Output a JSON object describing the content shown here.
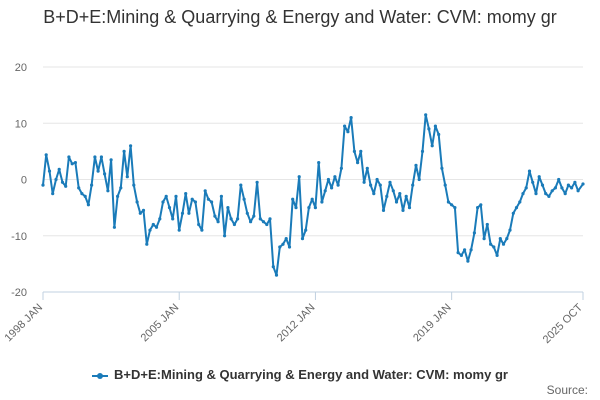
{
  "chart_data": {
    "type": "line",
    "title": "B+D+E:Mining & Quarrying & Energy and Water: CVM: momy gr",
    "xlabel": "",
    "ylabel": "",
    "ylim": [
      -20,
      20
    ],
    "yticks": [
      20,
      10,
      0,
      -10,
      -20
    ],
    "xticks": [
      {
        "label": "1998 JAN",
        "x": "1998-01"
      },
      {
        "label": "2005 JAN",
        "x": "2005-01"
      },
      {
        "label": "2012 JAN",
        "x": "2012-01"
      },
      {
        "label": "2019 JAN",
        "x": "2019-01"
      },
      {
        "label": "2025 OCT",
        "x": "2025-10"
      }
    ],
    "grid": "horizontal",
    "legend_position": "bottom",
    "color": "#1a7bb9",
    "series": [
      {
        "name": "B+D+E:Mining & Quarrying & Energy and Water: CVM: momy gr",
        "points": [
          [
            "1998-01",
            -1.0
          ],
          [
            "1998-03",
            4.4
          ],
          [
            "1998-05",
            1.5
          ],
          [
            "1998-07",
            -2.5
          ],
          [
            "1998-09",
            0.0
          ],
          [
            "1998-11",
            1.8
          ],
          [
            "1999-01",
            -0.5
          ],
          [
            "1999-03",
            -1.2
          ],
          [
            "1999-05",
            4.0
          ],
          [
            "1999-07",
            2.8
          ],
          [
            "1999-09",
            3.0
          ],
          [
            "1999-11",
            -1.5
          ],
          [
            "2000-01",
            -2.5
          ],
          [
            "2000-03",
            -3.0
          ],
          [
            "2000-05",
            -4.5
          ],
          [
            "2000-07",
            -1.0
          ],
          [
            "2000-09",
            4.0
          ],
          [
            "2000-11",
            1.5
          ],
          [
            "2001-01",
            4.0
          ],
          [
            "2001-03",
            1.0
          ],
          [
            "2001-05",
            -2.0
          ],
          [
            "2001-07",
            3.5
          ],
          [
            "2001-09",
            -8.5
          ],
          [
            "2001-11",
            -3.0
          ],
          [
            "2002-01",
            -1.5
          ],
          [
            "2002-03",
            5.0
          ],
          [
            "2002-05",
            0.5
          ],
          [
            "2002-07",
            6.0
          ],
          [
            "2002-09",
            -1.0
          ],
          [
            "2002-11",
            -4.0
          ],
          [
            "2003-01",
            -6.0
          ],
          [
            "2003-03",
            -5.5
          ],
          [
            "2003-05",
            -11.5
          ],
          [
            "2003-07",
            -9.0
          ],
          [
            "2003-09",
            -8.0
          ],
          [
            "2003-11",
            -8.5
          ],
          [
            "2004-01",
            -7.0
          ],
          [
            "2004-03",
            -4.0
          ],
          [
            "2004-05",
            -3.0
          ],
          [
            "2004-07",
            -5.0
          ],
          [
            "2004-09",
            -7.0
          ],
          [
            "2004-11",
            -3.0
          ],
          [
            "2005-01",
            -9.0
          ],
          [
            "2005-03",
            -6.0
          ],
          [
            "2005-05",
            -2.5
          ],
          [
            "2005-07",
            -6.0
          ],
          [
            "2005-09",
            -3.5
          ],
          [
            "2005-11",
            -4.0
          ],
          [
            "2006-01",
            -8.0
          ],
          [
            "2006-03",
            -9.0
          ],
          [
            "2006-05",
            -2.0
          ],
          [
            "2006-07",
            -3.5
          ],
          [
            "2006-09",
            -4.0
          ],
          [
            "2006-11",
            -6.5
          ],
          [
            "2007-01",
            -7.5
          ],
          [
            "2007-03",
            -3.0
          ],
          [
            "2007-05",
            -10.0
          ],
          [
            "2007-07",
            -5.0
          ],
          [
            "2007-09",
            -7.0
          ],
          [
            "2007-11",
            -8.0
          ],
          [
            "2008-01",
            -7.0
          ],
          [
            "2008-03",
            -1.0
          ],
          [
            "2008-05",
            -3.5
          ],
          [
            "2008-07",
            -6.0
          ],
          [
            "2008-09",
            -7.5
          ],
          [
            "2008-11",
            -6.5
          ],
          [
            "2009-01",
            -0.5
          ],
          [
            "2009-03",
            -7.0
          ],
          [
            "2009-05",
            -7.5
          ],
          [
            "2009-07",
            -8.0
          ],
          [
            "2009-09",
            -7.0
          ],
          [
            "2009-11",
            -15.5
          ],
          [
            "2010-01",
            -17.0
          ],
          [
            "2010-03",
            -12.0
          ],
          [
            "2010-05",
            -11.5
          ],
          [
            "2010-07",
            -10.5
          ],
          [
            "2010-09",
            -12.0
          ],
          [
            "2010-11",
            -3.5
          ],
          [
            "2011-01",
            -5.0
          ],
          [
            "2011-03",
            0.5
          ],
          [
            "2011-05",
            -10.5
          ],
          [
            "2011-07",
            -9.0
          ],
          [
            "2011-09",
            -5.0
          ],
          [
            "2011-11",
            -3.5
          ],
          [
            "2012-01",
            -5.0
          ],
          [
            "2012-03",
            3.0
          ],
          [
            "2012-05",
            -4.0
          ],
          [
            "2012-07",
            -2.0
          ],
          [
            "2012-09",
            0.0
          ],
          [
            "2012-11",
            -1.5
          ],
          [
            "2013-01",
            0.5
          ],
          [
            "2013-03",
            -1.0
          ],
          [
            "2013-05",
            2.0
          ],
          [
            "2013-07",
            9.5
          ],
          [
            "2013-09",
            8.5
          ],
          [
            "2013-11",
            11.0
          ],
          [
            "2014-01",
            5.0
          ],
          [
            "2014-03",
            3.0
          ],
          [
            "2014-05",
            5.0
          ],
          [
            "2014-07",
            -0.5
          ],
          [
            "2014-09",
            2.0
          ],
          [
            "2014-11",
            -1.0
          ],
          [
            "2015-01",
            -2.5
          ],
          [
            "2015-03",
            0.0
          ],
          [
            "2015-05",
            -1.0
          ],
          [
            "2015-07",
            -5.5
          ],
          [
            "2015-09",
            -3.0
          ],
          [
            "2015-11",
            -0.5
          ],
          [
            "2016-01",
            -2.0
          ],
          [
            "2016-03",
            -4.0
          ],
          [
            "2016-05",
            -2.5
          ],
          [
            "2016-07",
            -5.5
          ],
          [
            "2016-09",
            -3.0
          ],
          [
            "2016-11",
            -5.0
          ],
          [
            "2017-01",
            -1.0
          ],
          [
            "2017-03",
            2.5
          ],
          [
            "2017-05",
            0.0
          ],
          [
            "2017-07",
            5.0
          ],
          [
            "2017-09",
            11.5
          ],
          [
            "2017-11",
            9.0
          ],
          [
            "2018-01",
            6.0
          ],
          [
            "2018-03",
            9.5
          ],
          [
            "2018-05",
            8.0
          ],
          [
            "2018-07",
            2.0
          ],
          [
            "2018-09",
            -1.0
          ],
          [
            "2018-11",
            -4.0
          ],
          [
            "2019-01",
            -4.5
          ],
          [
            "2019-03",
            -5.0
          ],
          [
            "2019-05",
            -13.0
          ],
          [
            "2019-07",
            -13.5
          ],
          [
            "2019-09",
            -12.5
          ],
          [
            "2019-11",
            -14.5
          ],
          [
            "2020-01",
            -12.5
          ],
          [
            "2020-03",
            -9.5
          ],
          [
            "2020-05",
            -5.0
          ],
          [
            "2020-07",
            -4.5
          ],
          [
            "2020-09",
            -10.5
          ],
          [
            "2020-11",
            -8.0
          ],
          [
            "2021-01",
            -11.5
          ],
          [
            "2021-03",
            -12.0
          ],
          [
            "2021-05",
            -13.5
          ],
          [
            "2021-07",
            -10.5
          ],
          [
            "2021-09",
            -11.5
          ],
          [
            "2021-11",
            -10.5
          ],
          [
            "2022-01",
            -9.0
          ],
          [
            "2022-03",
            -6.0
          ],
          [
            "2022-05",
            -5.0
          ],
          [
            "2022-07",
            -4.0
          ],
          [
            "2022-09",
            -2.5
          ],
          [
            "2022-11",
            -1.5
          ],
          [
            "2023-01",
            1.5
          ],
          [
            "2023-03",
            -0.5
          ],
          [
            "2023-05",
            -2.5
          ],
          [
            "2023-07",
            0.5
          ],
          [
            "2023-09",
            -1.0
          ],
          [
            "2023-11",
            -2.5
          ],
          [
            "2024-01",
            -3.0
          ],
          [
            "2024-03",
            -2.0
          ],
          [
            "2024-05",
            -1.5
          ],
          [
            "2024-07",
            0.0
          ],
          [
            "2024-09",
            -1.5
          ],
          [
            "2024-11",
            -2.5
          ],
          [
            "2025-01",
            -1.0
          ],
          [
            "2025-03",
            -1.5
          ],
          [
            "2025-05",
            -0.5
          ],
          [
            "2025-07",
            -2.0
          ],
          [
            "2025-10",
            -0.8
          ]
        ]
      }
    ]
  },
  "legend": {
    "label": "B+D+E:Mining & Quarrying & Energy and Water: CVM: momy gr"
  },
  "source": {
    "label": "Source:"
  }
}
